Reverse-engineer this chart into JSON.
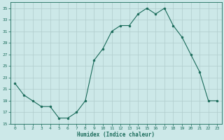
{
  "x": [
    0,
    1,
    2,
    3,
    4,
    5,
    6,
    7,
    8,
    9,
    10,
    11,
    12,
    13,
    14,
    15,
    16,
    17,
    18,
    19,
    20,
    21,
    22,
    23
  ],
  "y": [
    22,
    20,
    19,
    18,
    18,
    16,
    16,
    17,
    19,
    26,
    28,
    31,
    32,
    32,
    34,
    35,
    34,
    35,
    32,
    30,
    27,
    24,
    19,
    19
  ],
  "line_color": "#1a6b5a",
  "marker": "o",
  "marker_size": 2.0,
  "bg_color": "#cce8e8",
  "grid_color": "#b0cccc",
  "xlabel": "Humidex (Indice chaleur)",
  "ylim": [
    15,
    36
  ],
  "xlim": [
    -0.5,
    23.5
  ],
  "yticks": [
    15,
    17,
    19,
    21,
    23,
    25,
    27,
    29,
    31,
    33,
    35
  ],
  "xticks": [
    0,
    1,
    2,
    3,
    4,
    5,
    6,
    7,
    8,
    9,
    10,
    11,
    12,
    13,
    14,
    15,
    16,
    17,
    18,
    19,
    20,
    21,
    22,
    23
  ]
}
